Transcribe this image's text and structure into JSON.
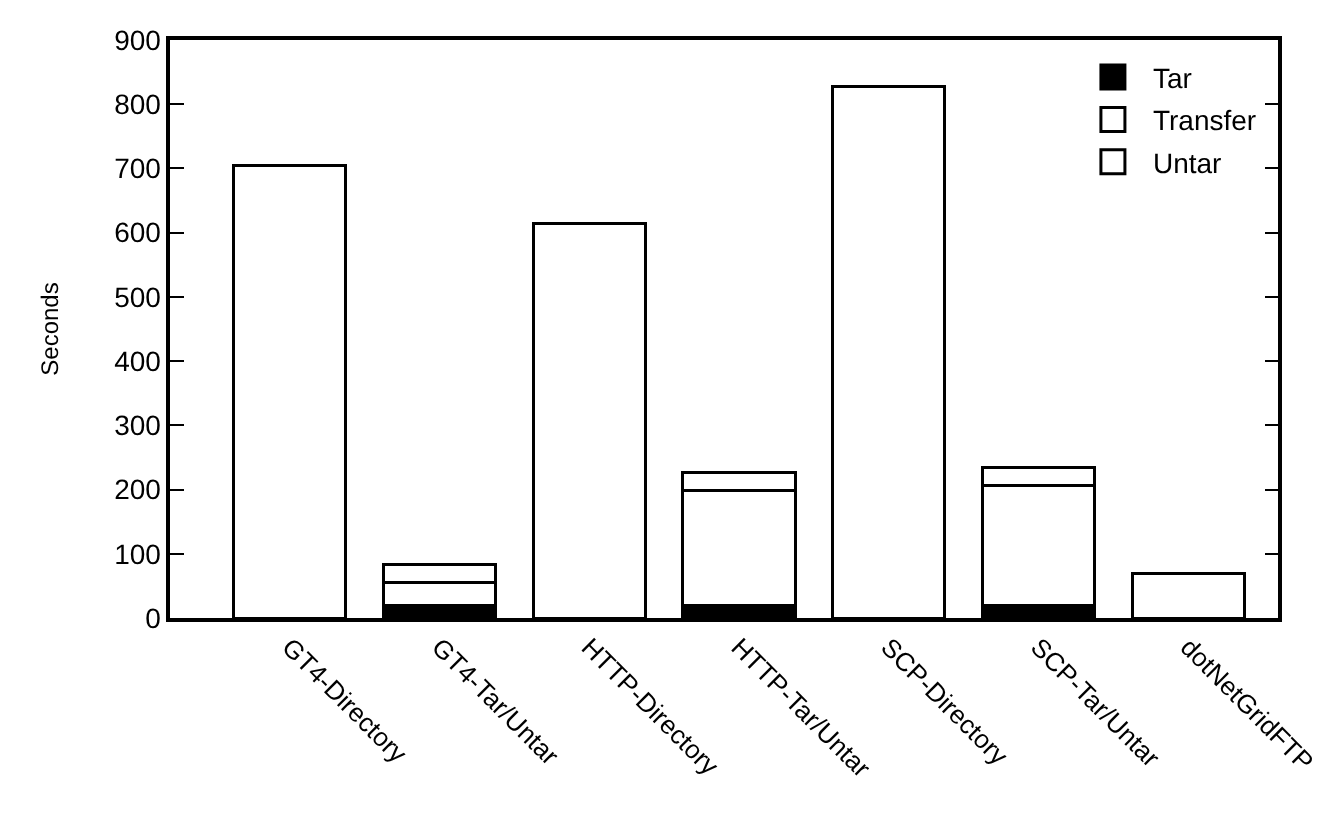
{
  "chart_data": {
    "type": "bar",
    "stacked": true,
    "ylabel": "Seconds",
    "categories": [
      "GT4-Directory",
      "GT4-Tar/Untar",
      "HTTP-Directory",
      "HTTP-Tar/Untar",
      "SCP-Directory",
      "SCP-Tar/Untar",
      "dotNetGridFTP"
    ],
    "series": [
      {
        "name": "Tar",
        "color": "#000000",
        "values": [
          null,
          20,
          null,
          20,
          null,
          20,
          null
        ]
      },
      {
        "name": "Transfer",
        "color": "#ffffff",
        "values": [
          705,
          35,
          615,
          178,
          827,
          187,
          70
        ]
      },
      {
        "name": "Untar",
        "color": "#ffffff",
        "values": [
          null,
          28,
          null,
          28,
          null,
          28,
          null
        ]
      }
    ],
    "ylim": [
      0,
      900
    ],
    "yticks": [
      0,
      100,
      200,
      300,
      400,
      500,
      600,
      700,
      800,
      900
    ],
    "legend": "top right"
  }
}
